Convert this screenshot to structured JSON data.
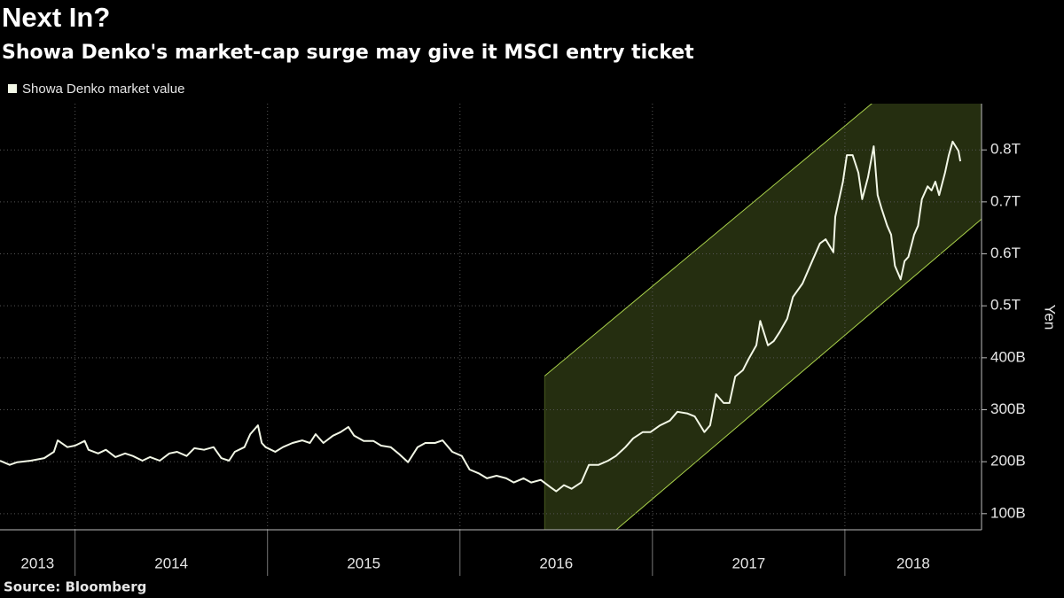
{
  "chart_data": {
    "type": "line",
    "title": "Next In?",
    "subtitle": "Showa Denko's market-cap surge may give it MSCI entry ticket",
    "y_label": "Yen",
    "source": "Source: Bloomberg",
    "grid": true,
    "xlim": [
      2013.61,
      2018.71
    ],
    "xticks": [
      2013,
      2014,
      2015,
      2016,
      2017,
      2018
    ],
    "ylim": [
      69,
      889
    ],
    "yticks": [
      {
        "value": 100,
        "label": "100B"
      },
      {
        "value": 200,
        "label": "200B"
      },
      {
        "value": 300,
        "label": "300B"
      },
      {
        "value": 400,
        "label": "400B"
      },
      {
        "value": 500,
        "label": "0.5T"
      },
      {
        "value": 600,
        "label": "0.6T"
      },
      {
        "value": 700,
        "label": "0.7T"
      },
      {
        "value": 800,
        "label": "0.8T"
      }
    ],
    "channel": {
      "x": [
        2016.44,
        2018.71
      ],
      "upper": [
        365,
        1065
      ],
      "lower": [
        -48,
        667
      ],
      "color": "#a8d04a"
    },
    "x": [
      2013.61,
      2013.66,
      2013.7,
      2013.77,
      2013.84,
      2013.89,
      2013.91,
      2013.96,
      2014.0,
      2014.05,
      2014.07,
      2014.12,
      2014.16,
      2014.21,
      2014.26,
      2014.3,
      2014.35,
      2014.39,
      2014.44,
      2014.49,
      2014.53,
      2014.58,
      2014.62,
      2014.67,
      2014.72,
      2014.76,
      2014.8,
      2014.83,
      2014.88,
      2014.91,
      2014.95,
      2014.97,
      2014.99,
      2015.04,
      2015.08,
      2015.13,
      2015.18,
      2015.22,
      2015.25,
      2015.29,
      2015.34,
      2015.38,
      2015.42,
      2015.45,
      2015.5,
      2015.55,
      2015.59,
      2015.64,
      2015.68,
      2015.73,
      2015.78,
      2015.82,
      2015.87,
      2015.91,
      2015.96,
      2016.01,
      2016.05,
      2016.1,
      2016.14,
      2016.19,
      2016.24,
      2016.28,
      2016.33,
      2016.37,
      2016.42,
      2016.47,
      2016.5,
      2016.54,
      2016.58,
      2016.63,
      2016.67,
      2016.72,
      2016.77,
      2016.81,
      2016.86,
      2016.9,
      2016.95,
      2016.99,
      2017.04,
      2017.09,
      2017.13,
      2017.18,
      2017.22,
      2017.27,
      2017.3,
      2017.33,
      2017.37,
      2017.4,
      2017.43,
      2017.47,
      2017.5,
      2017.54,
      2017.56,
      2017.6,
      2017.63,
      2017.66,
      2017.7,
      2017.73,
      2017.78,
      2017.83,
      2017.87,
      2017.9,
      2017.94,
      2017.95,
      2017.99,
      2018.01,
      2018.04,
      2018.07,
      2018.09,
      2018.12,
      2018.15,
      2018.17,
      2018.19,
      2018.22,
      2018.24,
      2018.26,
      2018.29,
      2018.31,
      2018.33,
      2018.36,
      2018.38,
      2018.4,
      2018.43,
      2018.45,
      2018.47,
      2018.49,
      2018.52,
      2018.54,
      2018.56,
      2018.59,
      2018.6
    ],
    "series": [
      {
        "name": "Showa Denko market value",
        "color": "#f2f7e6",
        "values": [
          202,
          194,
          199,
          202,
          207,
          219,
          241,
          228,
          231,
          240,
          223,
          216,
          223,
          209,
          216,
          211,
          202,
          209,
          202,
          216,
          219,
          211,
          226,
          223,
          228,
          207,
          202,
          219,
          228,
          253,
          270,
          236,
          228,
          219,
          228,
          236,
          241,
          236,
          253,
          236,
          250,
          257,
          267,
          250,
          240,
          240,
          231,
          228,
          216,
          199,
          228,
          236,
          236,
          241,
          219,
          211,
          185,
          177,
          168,
          173,
          168,
          160,
          168,
          160,
          165,
          151,
          143,
          155,
          148,
          160,
          194,
          194,
          202,
          211,
          228,
          245,
          257,
          257,
          270,
          279,
          296,
          293,
          287,
          257,
          270,
          330,
          313,
          313,
          364,
          376,
          398,
          424,
          471,
          424,
          432,
          449,
          475,
          517,
          543,
          586,
          620,
          628,
          603,
          671,
          739,
          790,
          790,
          756,
          705,
          747,
          807,
          713,
          688,
          654,
          637,
          577,
          551,
          586,
          594,
          637,
          654,
          705,
          730,
          722,
          739,
          713,
          756,
          790,
          816,
          798,
          778
        ]
      }
    ]
  }
}
